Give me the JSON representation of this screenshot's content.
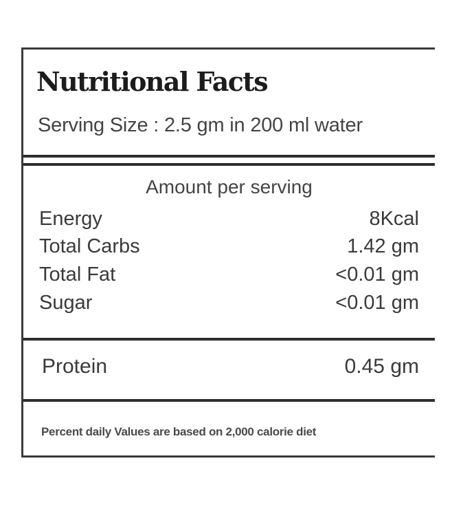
{
  "label": {
    "title": "Nutritional Facts",
    "serving_size": "Serving Size : 2.5 gm in 200 ml water",
    "amount_header": "Amount per serving",
    "nutrients": [
      {
        "name": "Energy",
        "value": "8Kcal"
      },
      {
        "name": "Total Carbs",
        "value": "1.42 gm"
      },
      {
        "name": "Total Fat",
        "value": "<0.01 gm"
      },
      {
        "name": "Sugar",
        "value": "<0.01 gm"
      }
    ],
    "protein": {
      "name": "Protein",
      "value": "0.45 gm"
    },
    "footnote": "Percent daily Values are based on 2,000 calorie diet"
  }
}
